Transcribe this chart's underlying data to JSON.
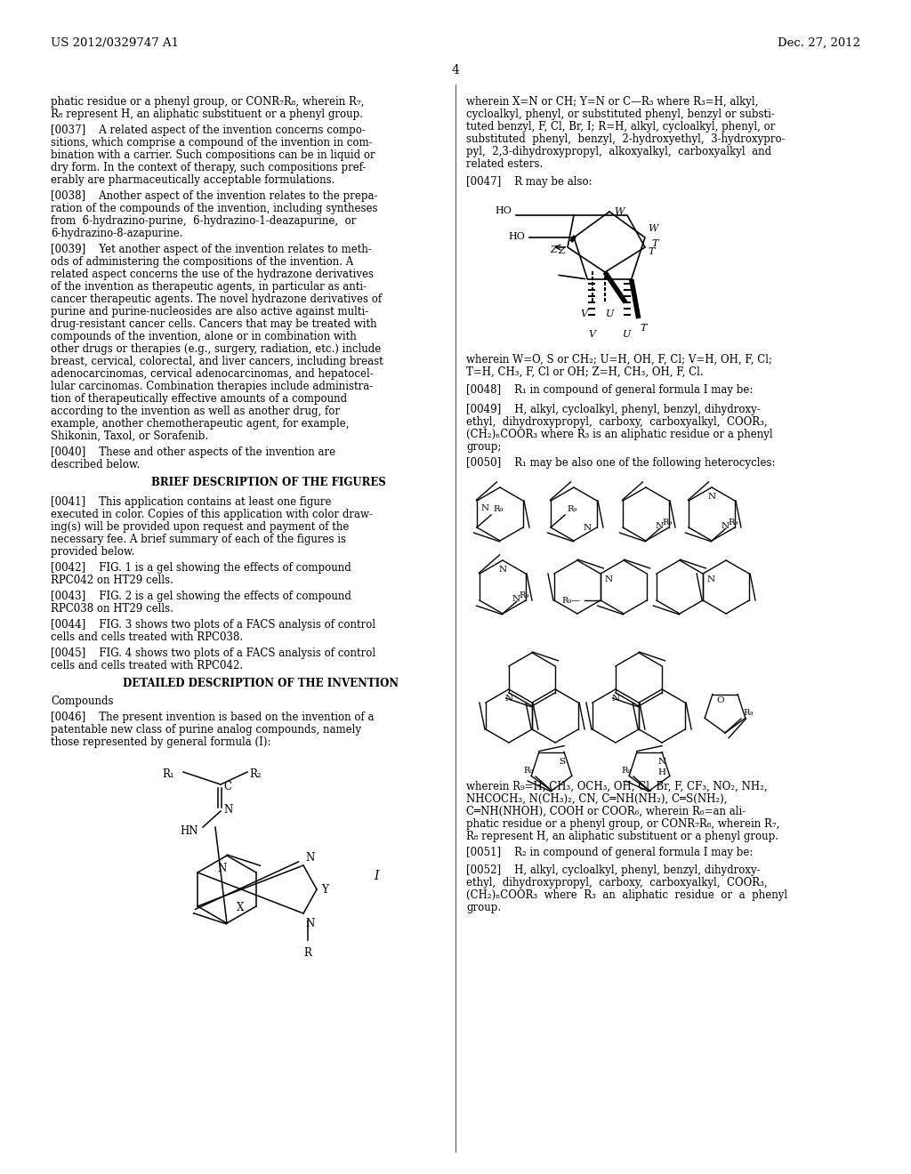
{
  "background_color": "#ffffff",
  "page_number": "4",
  "header_left": "US 2012/0329747 A1",
  "header_right": "Dec. 27, 2012"
}
